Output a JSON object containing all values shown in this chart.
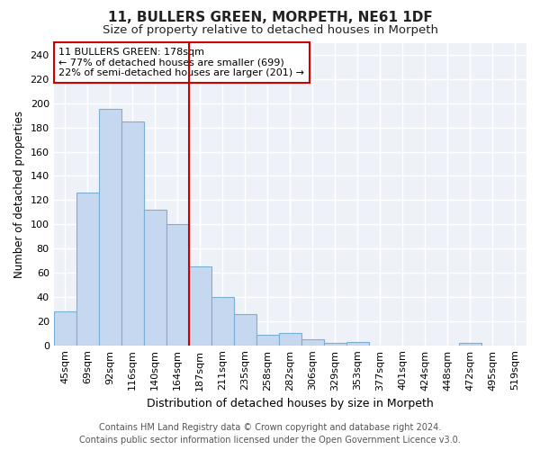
{
  "title": "11, BULLERS GREEN, MORPETH, NE61 1DF",
  "subtitle": "Size of property relative to detached houses in Morpeth",
  "xlabel": "Distribution of detached houses by size in Morpeth",
  "ylabel": "Number of detached properties",
  "categories": [
    "45sqm",
    "69sqm",
    "92sqm",
    "116sqm",
    "140sqm",
    "164sqm",
    "187sqm",
    "211sqm",
    "235sqm",
    "258sqm",
    "282sqm",
    "306sqm",
    "329sqm",
    "353sqm",
    "377sqm",
    "401sqm",
    "424sqm",
    "448sqm",
    "472sqm",
    "495sqm",
    "519sqm"
  ],
  "values": [
    28,
    126,
    195,
    185,
    112,
    100,
    65,
    40,
    26,
    9,
    10,
    5,
    2,
    3,
    0,
    0,
    0,
    0,
    2,
    0,
    0
  ],
  "bar_color": "#c5d8f0",
  "bar_edge_color": "#7aafd4",
  "vline_x_index": 6,
  "vline_color": "#cc0000",
  "annotation_text": "11 BULLERS GREEN: 178sqm\n← 77% of detached houses are smaller (699)\n22% of semi-detached houses are larger (201) →",
  "annotation_box_color": "white",
  "annotation_box_edge_color": "#cc0000",
  "ylim": [
    0,
    250
  ],
  "yticks": [
    0,
    20,
    40,
    60,
    80,
    100,
    120,
    140,
    160,
    180,
    200,
    220,
    240
  ],
  "bg_color": "#eef2f8",
  "grid_color": "#ffffff",
  "footer1": "Contains HM Land Registry data © Crown copyright and database right 2024.",
  "footer2": "Contains public sector information licensed under the Open Government Licence v3.0.",
  "title_fontsize": 11,
  "subtitle_fontsize": 9.5,
  "xlabel_fontsize": 9,
  "ylabel_fontsize": 8.5,
  "tick_fontsize": 8,
  "footer_fontsize": 7
}
